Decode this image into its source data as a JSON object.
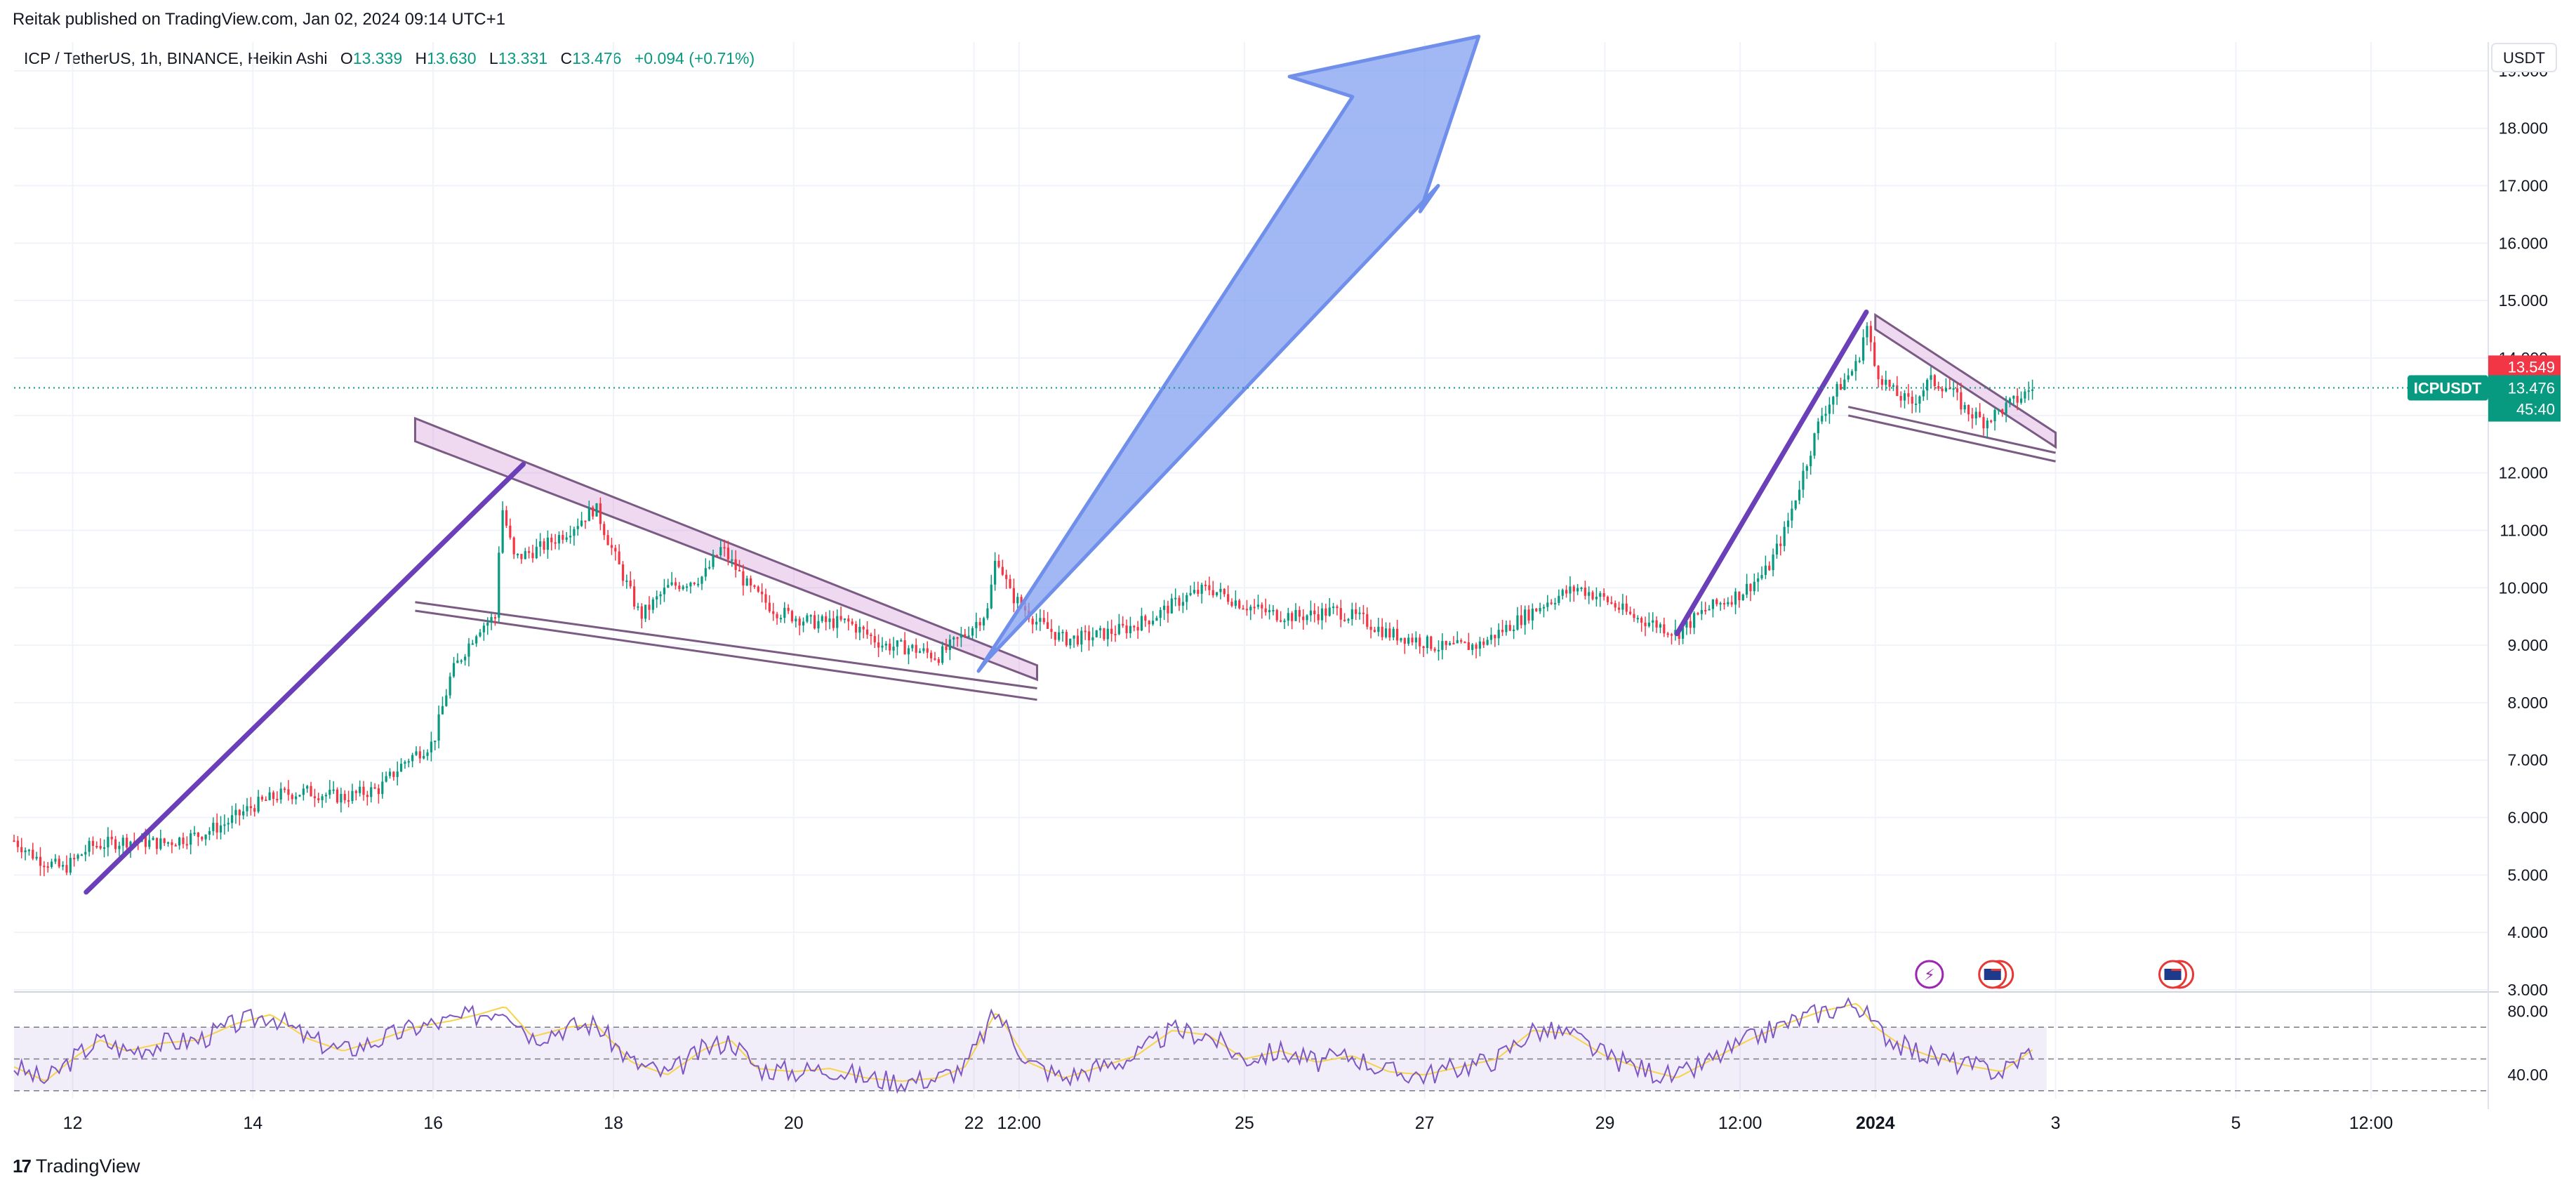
{
  "header": {
    "published": "Reitak published on TradingView.com, Jan 02, 2024 09:14 UTC+1"
  },
  "legend": {
    "symbol": "ICP / TetherUS, 1h, BINANCE, Heikin Ashi",
    "open_label": "O",
    "open": "13.339",
    "high_label": "H",
    "high": "13.630",
    "low_label": "L",
    "low": "13.331",
    "close_label": "C",
    "close": "13.476",
    "change": "+0.094 (+0.71%)"
  },
  "currency": "USDT",
  "price_badges": {
    "red": "13.549",
    "symbol": "ICPUSDT",
    "last": "13.476",
    "countdown": "45:40"
  },
  "colors": {
    "up": "#089981",
    "down": "#f23645",
    "pattern": "#6a3fb8",
    "arrow": "#7d9cf0",
    "rsi": "#7e57c2",
    "rsi_ma": "#f7d34a"
  },
  "footer": {
    "brand": "TradingView",
    "logo_icon": "tradingview-logo-icon"
  },
  "events": [
    {
      "icon": "lightning-icon",
      "day": 2.6
    },
    {
      "icon": "us-flag-icon",
      "day": 3.3
    },
    {
      "icon": "us-flag-icon",
      "day": 5.3
    }
  ],
  "chart_data": {
    "type": "candlestick",
    "style": "Heikin Ashi",
    "interval": "1h",
    "y_ticks": [
      "3.000",
      "4.000",
      "5.000",
      "6.000",
      "7.000",
      "8.000",
      "9.000",
      "10.000",
      "11.000",
      "12.000",
      "13.000",
      "14.000",
      "15.000",
      "16.000",
      "17.000",
      "18.000",
      "19.000"
    ],
    "ylim": [
      3,
      19.5
    ],
    "x_ticks": [
      {
        "label": "12",
        "day": 12
      },
      {
        "label": "14",
        "day": 14
      },
      {
        "label": "16",
        "day": 16
      },
      {
        "label": "18",
        "day": 18
      },
      {
        "label": "20",
        "day": 20
      },
      {
        "label": "22",
        "day": 22
      },
      {
        "label": "12:00",
        "day": 22.5
      },
      {
        "label": "25",
        "day": 25
      },
      {
        "label": "27",
        "day": 27
      },
      {
        "label": "29",
        "day": 29
      },
      {
        "label": "12:00",
        "day": 30.5
      },
      {
        "label": "2024",
        "day": 32
      },
      {
        "label": "3",
        "day": 34
      },
      {
        "label": "5",
        "day": 36
      },
      {
        "label": "12:00",
        "day": 37.5
      }
    ],
    "xlim_day": [
      11.35,
      38.8
    ],
    "price_path": [
      [
        11.35,
        5.6
      ],
      [
        11.6,
        5.3
      ],
      [
        11.9,
        5.1
      ],
      [
        12.2,
        5.5
      ],
      [
        12.6,
        5.6
      ],
      [
        13,
        5.55
      ],
      [
        13.4,
        5.7
      ],
      [
        13.7,
        5.9
      ],
      [
        14,
        6.2
      ],
      [
        14.3,
        6.4
      ],
      [
        14.6,
        6.45
      ],
      [
        15,
        6.35
      ],
      [
        15.4,
        6.5
      ],
      [
        15.7,
        7.0
      ],
      [
        16,
        7.3
      ],
      [
        16.2,
        8.5
      ],
      [
        16.5,
        9.3
      ],
      [
        16.7,
        9.5
      ],
      [
        16.75,
        11.5
      ],
      [
        16.9,
        10.5
      ],
      [
        17.2,
        10.7
      ],
      [
        17.5,
        11.0
      ],
      [
        17.8,
        11.4
      ],
      [
        18.0,
        10.6
      ],
      [
        18.3,
        9.5
      ],
      [
        18.6,
        10.0
      ],
      [
        19.0,
        10.2
      ],
      [
        19.2,
        10.7
      ],
      [
        19.5,
        10.0
      ],
      [
        19.8,
        9.6
      ],
      [
        20.2,
        9.4
      ],
      [
        20.6,
        9.4
      ],
      [
        21.0,
        9.0
      ],
      [
        21.3,
        8.95
      ],
      [
        21.6,
        8.8
      ],
      [
        21.9,
        9.2
      ],
      [
        22.15,
        9.6
      ],
      [
        22.25,
        10.6
      ],
      [
        22.4,
        9.9
      ],
      [
        22.7,
        9.4
      ],
      [
        23.0,
        9.1
      ],
      [
        23.3,
        9.15
      ],
      [
        23.7,
        9.3
      ],
      [
        24.0,
        9.5
      ],
      [
        24.3,
        9.8
      ],
      [
        24.6,
        10.0
      ],
      [
        25.0,
        9.7
      ],
      [
        25.3,
        9.55
      ],
      [
        25.6,
        9.5
      ],
      [
        26.0,
        9.6
      ],
      [
        26.3,
        9.45
      ],
      [
        26.6,
        9.2
      ],
      [
        26.9,
        9.1
      ],
      [
        27.2,
        8.95
      ],
      [
        27.6,
        9.0
      ],
      [
        28.0,
        9.4
      ],
      [
        28.4,
        9.8
      ],
      [
        28.7,
        10.0
      ],
      [
        29.0,
        9.8
      ],
      [
        29.3,
        9.5
      ],
      [
        29.6,
        9.35
      ],
      [
        29.8,
        9.2
      ],
      [
        30.1,
        9.6
      ],
      [
        30.5,
        9.9
      ],
      [
        30.8,
        10.3
      ],
      [
        31.0,
        11.0
      ],
      [
        31.2,
        12.0
      ],
      [
        31.4,
        13.0
      ],
      [
        31.6,
        13.5
      ],
      [
        31.8,
        13.9
      ],
      [
        31.9,
        14.6
      ],
      [
        32.0,
        13.8
      ],
      [
        32.2,
        13.4
      ],
      [
        32.4,
        13.2
      ],
      [
        32.6,
        13.6
      ],
      [
        32.8,
        13.5
      ],
      [
        33.0,
        13.1
      ],
      [
        33.2,
        12.9
      ],
      [
        33.4,
        13.1
      ],
      [
        33.6,
        13.3
      ],
      [
        33.75,
        13.5
      ]
    ],
    "rsi": {
      "name": "RSI",
      "y_ticks": [
        "80.00",
        "40.00"
      ],
      "ylim": [
        25,
        90
      ],
      "upper_band": 70,
      "lower_band": 30,
      "middle": 50,
      "path": [
        [
          11.35,
          45
        ],
        [
          11.7,
          36
        ],
        [
          12.0,
          50
        ],
        [
          12.3,
          62
        ],
        [
          12.6,
          55
        ],
        [
          13.0,
          60
        ],
        [
          13.4,
          62
        ],
        [
          13.8,
          72
        ],
        [
          14.2,
          78
        ],
        [
          14.6,
          63
        ],
        [
          15.0,
          55
        ],
        [
          15.4,
          62
        ],
        [
          15.8,
          70
        ],
        [
          16.2,
          74
        ],
        [
          16.5,
          78
        ],
        [
          16.8,
          83
        ],
        [
          17.1,
          64
        ],
        [
          17.5,
          70
        ],
        [
          17.8,
          72
        ],
        [
          18.2,
          48
        ],
        [
          18.6,
          40
        ],
        [
          19.0,
          56
        ],
        [
          19.3,
          62
        ],
        [
          19.6,
          44
        ],
        [
          20.0,
          42
        ],
        [
          20.4,
          44
        ],
        [
          20.8,
          38
        ],
        [
          21.2,
          36
        ],
        [
          21.6,
          38
        ],
        [
          21.9,
          45
        ],
        [
          22.25,
          80
        ],
        [
          22.6,
          48
        ],
        [
          23.0,
          38
        ],
        [
          23.4,
          45
        ],
        [
          23.8,
          52
        ],
        [
          24.2,
          68
        ],
        [
          24.6,
          65
        ],
        [
          25.0,
          50
        ],
        [
          25.4,
          55
        ],
        [
          25.8,
          48
        ],
        [
          26.2,
          52
        ],
        [
          26.6,
          42
        ],
        [
          27.0,
          40
        ],
        [
          27.4,
          45
        ],
        [
          27.8,
          50
        ],
        [
          28.2,
          68
        ],
        [
          28.6,
          66
        ],
        [
          29.0,
          52
        ],
        [
          29.4,
          44
        ],
        [
          29.8,
          38
        ],
        [
          30.2,
          50
        ],
        [
          30.6,
          62
        ],
        [
          31.0,
          72
        ],
        [
          31.4,
          80
        ],
        [
          31.8,
          85
        ],
        [
          32.0,
          70
        ],
        [
          32.3,
          58
        ],
        [
          32.6,
          52
        ],
        [
          33.0,
          46
        ],
        [
          33.4,
          42
        ],
        [
          33.75,
          56
        ]
      ]
    }
  }
}
